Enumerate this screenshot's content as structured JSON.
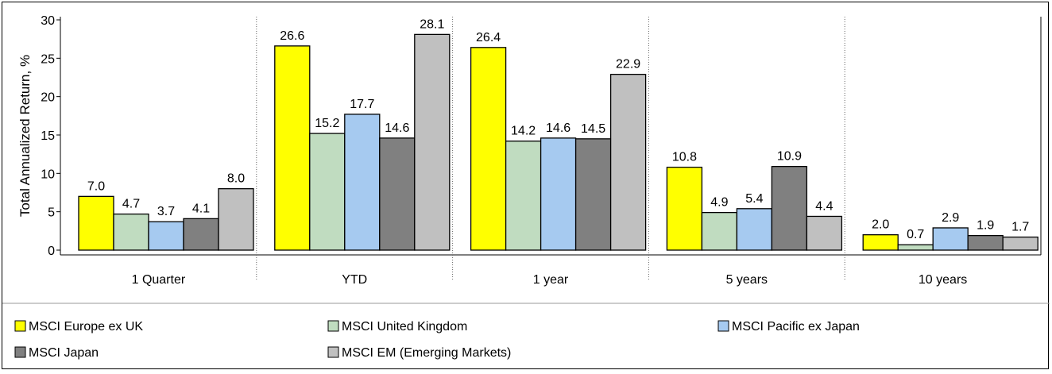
{
  "chart_data": {
    "type": "bar",
    "ylabel": "Total Annualized Return, %",
    "ylim": [
      0,
      30
    ],
    "yticks": [
      0,
      5,
      10,
      15,
      20,
      25,
      30
    ],
    "categories": [
      "1 Quarter",
      "YTD",
      "1 year",
      "5 years",
      "10 years"
    ],
    "series": [
      {
        "name": "MSCI Europe ex UK",
        "color": "#ffff00",
        "values": [
          7.0,
          26.6,
          26.4,
          10.8,
          2.0
        ]
      },
      {
        "name": "MSCI United Kingdom",
        "color": "#c0dcc0",
        "values": [
          4.7,
          15.2,
          14.2,
          4.9,
          0.7
        ]
      },
      {
        "name": "MSCI Pacific ex Japan",
        "color": "#a6caf0",
        "values": [
          3.7,
          17.7,
          14.6,
          5.4,
          2.9
        ]
      },
      {
        "name": "MSCI Japan",
        "color": "#808080",
        "values": [
          4.1,
          14.6,
          14.5,
          10.9,
          1.9
        ]
      },
      {
        "name": "MSCI EM (Emerging Markets)",
        "color": "#c0c0c0",
        "values": [
          8.0,
          28.1,
          22.9,
          4.4,
          1.7
        ]
      }
    ],
    "grid": "vertical dotted separators between groups",
    "legend_position": "bottom",
    "data_labels": true
  }
}
